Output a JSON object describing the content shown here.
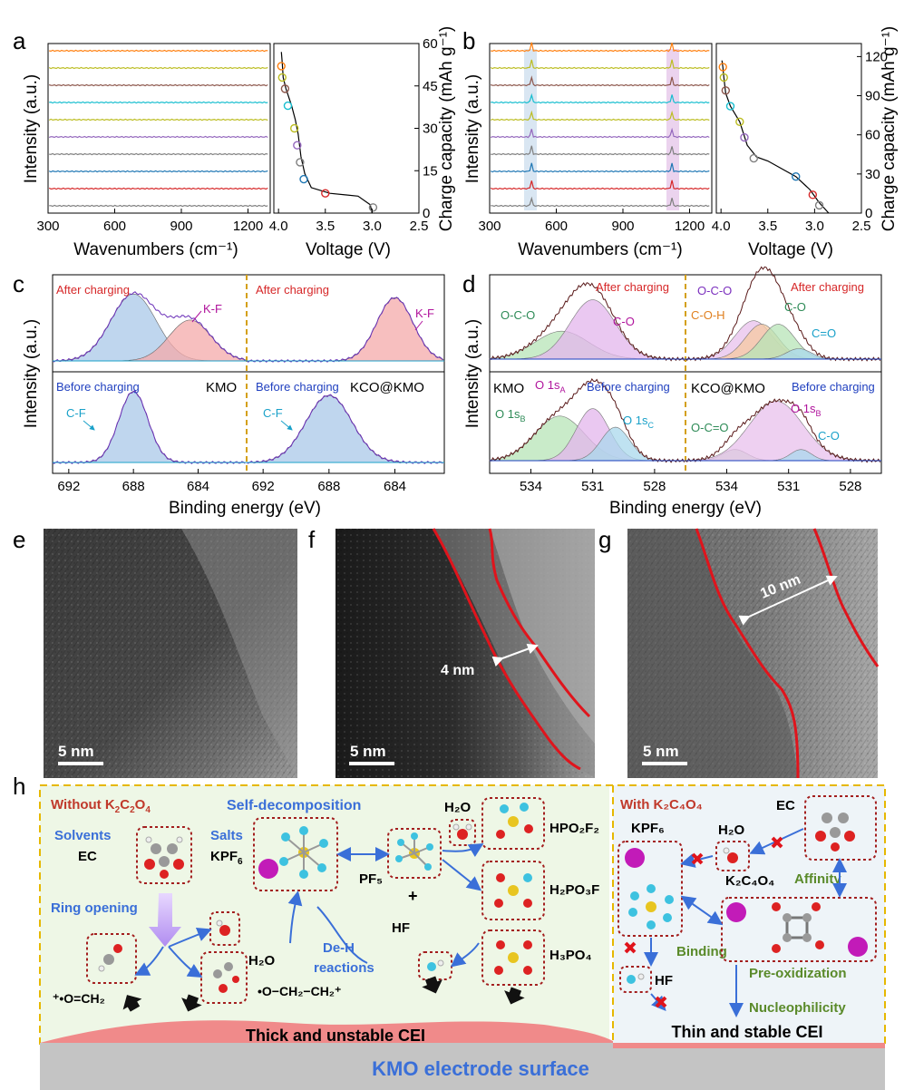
{
  "panel_letters": {
    "a": "a",
    "b": "b",
    "c": "c",
    "d": "d",
    "e": "e",
    "f": "f",
    "g": "g",
    "h": "h"
  },
  "axes": {
    "intensity": "Intensity (a.u.)",
    "wavenumbers": "Wavenumbers (cm⁻¹)",
    "voltage": "Voltage (V)",
    "charge_capacity": "Charge capacity  (mAh g⁻¹)",
    "binding_energy": "Binding energy (eV)"
  },
  "colors": {
    "spectra": [
      "#7f7f7f",
      "#d62728",
      "#1f77b4",
      "#7f7f7f",
      "#9467bd",
      "#bcbd22",
      "#17becf",
      "#8c564b",
      "#bcbd22",
      "#ff7f0e"
    ],
    "red_label": "#d62728",
    "blue_label": "#1f3fbf",
    "cei_pink": "#f08080",
    "diagram_blue": "#3a6fd8",
    "diagram_green": "#5a8a2a",
    "diagram_red": "#c0392b"
  },
  "chart_data": [
    {
      "panel": "a-left",
      "type": "line",
      "xlabel": "Wavenumbers (cm⁻¹)",
      "ylabel": "Intensity (a.u.)",
      "xlim": [
        300,
        1300
      ],
      "x_ticks": [
        "300",
        "600",
        "900",
        "1200"
      ],
      "series_count": 10,
      "peaks": []
    },
    {
      "panel": "a-right",
      "type": "line",
      "xlabel": "Voltage (V)",
      "ylabel": "Charge capacity  (mAh g⁻¹)",
      "xlim": [
        4.05,
        2.5
      ],
      "ylim": [
        0,
        60
      ],
      "x_ticks": [
        "4.0",
        "3.5",
        "3.0",
        "2.5"
      ],
      "y_ticks": [
        "0",
        "15",
        "30",
        "45",
        "60"
      ],
      "curve": [
        [
          3.0,
          0
        ],
        [
          3.02,
          3
        ],
        [
          3.15,
          6
        ],
        [
          3.45,
          7
        ],
        [
          3.65,
          9
        ],
        [
          3.72,
          14
        ],
        [
          3.76,
          20
        ],
        [
          3.79,
          28
        ],
        [
          3.82,
          33
        ],
        [
          3.86,
          38
        ],
        [
          3.92,
          44
        ],
        [
          3.95,
          48
        ],
        [
          3.96,
          53
        ],
        [
          3.97,
          57
        ]
      ],
      "markers": [
        [
          2.99,
          2
        ],
        [
          3.5,
          7
        ],
        [
          3.73,
          12
        ],
        [
          3.77,
          18
        ],
        [
          3.8,
          24
        ],
        [
          3.83,
          30
        ],
        [
          3.9,
          38
        ],
        [
          3.93,
          44
        ],
        [
          3.96,
          48
        ],
        [
          3.97,
          52
        ]
      ]
    },
    {
      "panel": "b-left",
      "type": "line",
      "xlabel": "Wavenumbers (cm⁻¹)",
      "ylabel": "Intensity (a.u.)",
      "xlim": [
        300,
        1300
      ],
      "x_ticks": [
        "300",
        "600",
        "900",
        "1200"
      ],
      "series_count": 10,
      "highlight_bands": [
        [
          470,
          510
        ],
        [
          1105,
          1140
        ]
      ],
      "peaks": [
        488,
        1120
      ]
    },
    {
      "panel": "b-right",
      "type": "line",
      "xlabel": "Voltage (V)",
      "ylabel": "Charge capacity  (mAh g⁻¹)",
      "xlim": [
        4.05,
        2.5
      ],
      "ylim": [
        0,
        130
      ],
      "x_ticks": [
        "4.0",
        "3.5",
        "3.0",
        "2.5"
      ],
      "y_ticks": [
        "0",
        "30",
        "60",
        "90",
        "120"
      ],
      "curve": [
        [
          2.85,
          0
        ],
        [
          2.95,
          8
        ],
        [
          3.05,
          18
        ],
        [
          3.2,
          28
        ],
        [
          3.5,
          40
        ],
        [
          3.62,
          43
        ],
        [
          3.72,
          52
        ],
        [
          3.8,
          70
        ],
        [
          3.9,
          82
        ],
        [
          3.95,
          92
        ],
        [
          3.97,
          104
        ],
        [
          3.98,
          112
        ],
        [
          3.99,
          117
        ]
      ],
      "markers": [
        [
          2.95,
          6
        ],
        [
          3.02,
          14
        ],
        [
          3.2,
          28
        ],
        [
          3.65,
          42
        ],
        [
          3.75,
          58
        ],
        [
          3.8,
          70
        ],
        [
          3.9,
          82
        ],
        [
          3.95,
          94
        ],
        [
          3.97,
          104
        ],
        [
          3.98,
          112
        ]
      ]
    },
    {
      "panel": "c",
      "type": "line",
      "xlabel": "Binding energy (eV)",
      "ylabel": "Intensity (a.u.)",
      "x_ticks": [
        "692",
        "688",
        "684"
      ],
      "subpanels": [
        {
          "sample": "KMO",
          "state": "After charging",
          "components": [
            {
              "label": "",
              "center": 688,
              "height": 0.9,
              "sigma": 1.4
            },
            {
              "label": "K-F",
              "center": 684.5,
              "height": 0.55,
              "sigma": 1.3
            }
          ]
        },
        {
          "sample": "KCO@KMO",
          "state": "After charging",
          "components": [
            {
              "label": "K-F",
              "center": 684,
              "height": 0.85,
              "sigma": 1.1
            }
          ]
        },
        {
          "sample": "KMO",
          "state": "Before charging",
          "components": [
            {
              "label": "C-F",
              "center": 688,
              "height": 0.9,
              "sigma": 0.9
            }
          ]
        },
        {
          "sample": "KCO@KMO",
          "state": "Before charging",
          "components": [
            {
              "label": "C-F",
              "center": 688,
              "height": 0.85,
              "sigma": 1.4
            }
          ]
        }
      ]
    },
    {
      "panel": "d",
      "type": "line",
      "xlabel": "Binding energy (eV)",
      "ylabel": "Intensity (a.u.)",
      "x_ticks": [
        "534",
        "531",
        "528"
      ],
      "subpanels": [
        {
          "sample": "",
          "state": "After charging",
          "labels": [
            "O-C-O",
            "C-O"
          ]
        },
        {
          "sample": "",
          "state": "After charging",
          "labels": [
            "O-C-O",
            "C-O-H",
            "C-O",
            "C=O"
          ]
        },
        {
          "sample": "KMO",
          "state": "Before charging",
          "labels": [
            "O 1sA",
            "O 1sB",
            "O 1sC"
          ]
        },
        {
          "sample": "KCO@KMO",
          "state": "Before charging",
          "labels": [
            "O 1sB",
            "O-C=O",
            "C-O"
          ]
        }
      ]
    }
  ],
  "panel_c_text": {
    "after": "After charging",
    "before": "Before charging",
    "kf": "K-F",
    "cf": "C-F",
    "kmo": "KMO",
    "kco": "KCO@KMO"
  },
  "panel_d_text": {
    "after": "After charging",
    "before": "Before charging",
    "oco": "O-C-O",
    "co": "C-O",
    "coh": "C-O-H",
    "ceo": "C=O",
    "kmo": "KMO",
    "kco": "KCO@KMO",
    "o1s": "O 1s",
    "sub_a": "A",
    "sub_b": "B",
    "sub_c": "C",
    "ocdo": "O-C=O"
  },
  "tem": {
    "scale_e": "5 nm",
    "scale_f": "5 nm",
    "scale_g": "5 nm",
    "thickness_f": "4 nm",
    "thickness_g": "10 nm"
  },
  "diagram": {
    "without_title_main": "Without K",
    "without_sub1": "2",
    "without_mid": "C",
    "without_sub2": "2",
    "without_end": "O",
    "without_sub3": "4",
    "self_decomposition": "Self-decomposition",
    "solvents": "Solvents",
    "salts": "Salts",
    "ec": "EC",
    "kpf": "KPF",
    "kpf_sub": "6",
    "ring_opening": "Ring opening",
    "h2o": "H₂O",
    "pf5": "PF₅",
    "plus": "+",
    "hf": "HF",
    "hpo2f2": "HPO₂F₂",
    "h2po3f": "H₂PO₃F",
    "h3po4": "H₃PO₄",
    "deh": "De-H",
    "reactions": "reactions",
    "radical1": "⁺•O=CH₂",
    "radical2": "•O−CH₂−CH₂⁺",
    "thick_cei": "Thick and unstable CEI",
    "with_title": "With K₂C₄O₄",
    "with_ec": "EC",
    "with_kpf": "KPF₆",
    "with_h2o": "H₂O",
    "k2c4o4": "K₂C₄O₄",
    "affinity": "Affinity",
    "binding": "Binding",
    "with_hf": "HF",
    "preox": "Pre-oxidization",
    "nucleo": "Nucleophilicity",
    "thin_cei": "Thin and stable CEI",
    "electrode": "KMO electrode surface"
  }
}
